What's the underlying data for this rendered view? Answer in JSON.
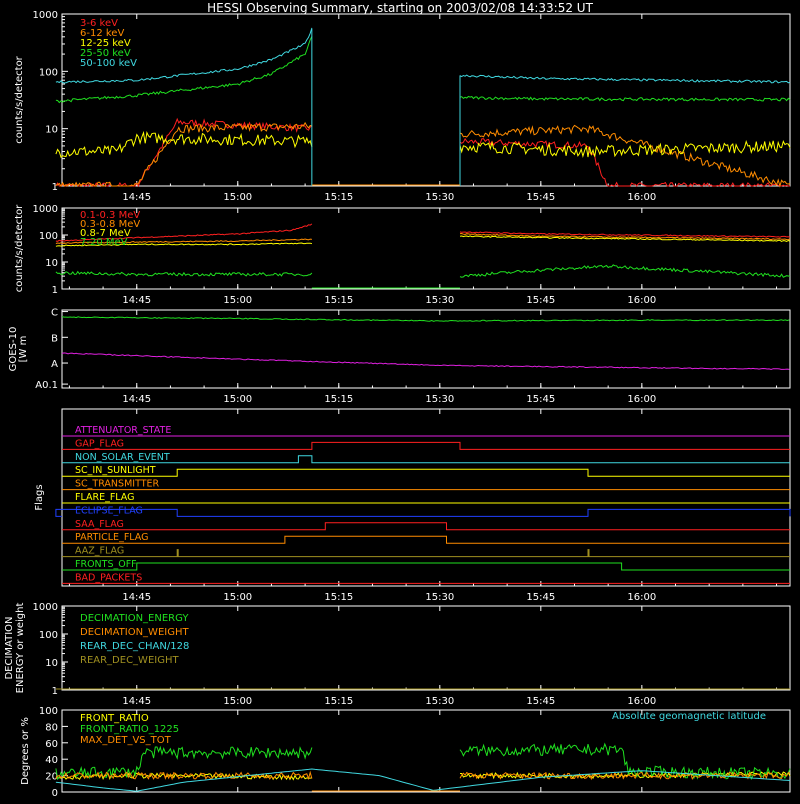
{
  "title": "HESSI Observing Summary, starting on 2003/02/08 14:33:52 UT",
  "x_ticks": [
    "14:45",
    "15:00",
    "15:15",
    "15:30",
    "15:45",
    "16:00"
  ],
  "colors": {
    "red": "#ff2020",
    "orange": "#ff8c00",
    "yellow": "#ffff00",
    "green": "#20e020",
    "cyan": "#40d8e0",
    "magenta": "#e020e0",
    "blue": "#2040ff",
    "olive": "#a09020",
    "white": "#ffffff",
    "black": "#000000"
  },
  "chart_data": [
    {
      "type": "line",
      "panel": "low-energy-rates",
      "ylabel": "counts/s/detector",
      "y_scale": "log",
      "ylim": [
        1,
        1000
      ],
      "y_ticks": [
        "1",
        "10",
        "100",
        "1000"
      ],
      "x_ticks": [
        "14:45",
        "15:00",
        "15:15",
        "15:30",
        "15:45",
        "16:00"
      ],
      "legend_position": "top-left",
      "data_gaps": [
        [
          "15:11",
          "15:33"
        ]
      ],
      "series": [
        {
          "name": "3-6 keV",
          "color": "red",
          "x": [
            "14:33",
            "14:42",
            "14:45",
            "14:51",
            "15:11",
            "15:33",
            "15:52",
            "15:55",
            "16:22"
          ],
          "values": [
            1,
            1,
            1,
            13,
            10,
            6,
            5,
            1,
            1
          ]
        },
        {
          "name": "6-12 keV",
          "color": "orange",
          "x": [
            "14:33",
            "14:42",
            "14:45",
            "14:51",
            "15:11",
            "15:33",
            "15:52",
            "16:22"
          ],
          "values": [
            1,
            1,
            1,
            10,
            11,
            8,
            10,
            1
          ]
        },
        {
          "name": "12-25 keV",
          "color": "yellow",
          "x": [
            "14:33",
            "14:42",
            "14:45",
            "15:11",
            "15:33",
            "15:52",
            "16:22"
          ],
          "values": [
            4,
            4,
            7,
            6,
            5,
            4,
            5
          ]
        },
        {
          "name": "25-50 keV",
          "color": "green",
          "x": [
            "14:33",
            "14:45",
            "15:00",
            "15:05",
            "15:10",
            "15:11",
            "15:33",
            "15:45",
            "16:22"
          ],
          "values": [
            30,
            38,
            60,
            90,
            200,
            400,
            35,
            33,
            32
          ]
        },
        {
          "name": "50-100 keV",
          "color": "cyan",
          "x": [
            "14:33",
            "14:45",
            "15:00",
            "15:05",
            "15:10",
            "15:11",
            "15:33",
            "15:45",
            "16:22"
          ],
          "values": [
            65,
            70,
            110,
            160,
            300,
            550,
            85,
            75,
            65
          ]
        }
      ]
    },
    {
      "type": "line",
      "panel": "high-energy-rates",
      "ylabel": "counts/s/detector",
      "y_scale": "log",
      "ylim": [
        1,
        1000
      ],
      "y_ticks": [
        "1",
        "10",
        "100",
        "1000"
      ],
      "x_ticks": [
        "14:45",
        "15:00",
        "15:15",
        "15:30",
        "15:45",
        "16:00"
      ],
      "legend_position": "top-left",
      "data_gaps": [
        [
          "15:11",
          "15:33"
        ]
      ],
      "series": [
        {
          "name": "0.1-0.3 MeV",
          "color": "red",
          "x": [
            "14:33",
            "14:45",
            "15:00",
            "15:08",
            "15:11",
            "15:33",
            "15:45",
            "16:22"
          ],
          "values": [
            60,
            80,
            110,
            150,
            250,
            130,
            110,
            85
          ]
        },
        {
          "name": "0.3-0.8 MeV",
          "color": "orange",
          "x": [
            "14:33",
            "14:45",
            "15:00",
            "15:11",
            "15:33",
            "15:45",
            "16:22"
          ],
          "values": [
            50,
            55,
            60,
            70,
            110,
            90,
            70
          ]
        },
        {
          "name": "0.8-7 MeV",
          "color": "yellow",
          "x": [
            "14:33",
            "14:45",
            "15:00",
            "15:11",
            "15:33",
            "15:45",
            "16:22"
          ],
          "values": [
            40,
            45,
            45,
            50,
            90,
            80,
            60
          ]
        },
        {
          "name": "7-20 MeV",
          "color": "green",
          "x": [
            "14:33",
            "14:45",
            "15:00",
            "15:11",
            "15:33",
            "15:45",
            "15:55",
            "16:22"
          ],
          "values": [
            4,
            3.5,
            3.5,
            3.5,
            3,
            5,
            7,
            3
          ]
        }
      ]
    },
    {
      "type": "line",
      "panel": "goes",
      "ylabel": "GOES-10",
      "ylabel_units": "[W m",
      "y_scale": "log",
      "y_ticks": [
        "A0.1",
        "A",
        "B",
        "C"
      ],
      "x_ticks": [
        "14:45",
        "15:00",
        "15:15",
        "15:30",
        "15:45",
        "16:00"
      ],
      "series": [
        {
          "color": "green",
          "x": [
            "14:33",
            "15:00",
            "15:30",
            "16:00",
            "16:22"
          ],
          "values": [
            "C",
            "C",
            "C",
            "C",
            "C"
          ],
          "level_fraction": [
            0.09,
            0.11,
            0.14,
            0.13,
            0.13
          ]
        },
        {
          "color": "magenta",
          "x": [
            "14:33",
            "15:00",
            "15:30",
            "16:00",
            "16:22"
          ],
          "values": [
            "A",
            "A",
            "A",
            "A",
            "A"
          ],
          "level_fraction": [
            0.55,
            0.63,
            0.71,
            0.74,
            0.76
          ]
        }
      ]
    },
    {
      "type": "line",
      "panel": "flags",
      "ylabel": "Flags",
      "x_ticks": [
        "14:45",
        "15:00",
        "15:15",
        "15:30",
        "15:45",
        "16:00"
      ],
      "flags": [
        {
          "name": "ATTENUATOR_STATE",
          "color": "magenta",
          "on": []
        },
        {
          "name": "GAP_FLAG",
          "color": "red",
          "on": [
            [
              "15:11",
              "15:33"
            ]
          ]
        },
        {
          "name": "NON_SOLAR_EVENT",
          "color": "cyan",
          "on": [
            [
              "15:09",
              "15:11"
            ]
          ]
        },
        {
          "name": "SC_IN_SUNLIGHT",
          "color": "yellow",
          "on": [
            [
              "14:51",
              "15:52"
            ]
          ]
        },
        {
          "name": "SC_TRANSMITTER",
          "color": "orange",
          "on": []
        },
        {
          "name": "FLARE_FLAG",
          "color": "yellow",
          "on": []
        },
        {
          "name": "ECLIPSE_FLAG",
          "color": "blue",
          "on": [
            [
              "14:33",
              "14:51"
            ],
            [
              "15:52",
              "16:22"
            ]
          ]
        },
        {
          "name": "SAA_FLAG",
          "color": "red",
          "on": [
            [
              "15:13",
              "15:31"
            ]
          ]
        },
        {
          "name": "PARTICLE_FLAG",
          "color": "orange",
          "on": [
            [
              "15:07",
              "15:31"
            ]
          ]
        },
        {
          "name": "AAZ_FLAG",
          "color": "olive",
          "on": [
            [
              "14:51",
              "14:51"
            ],
            [
              "15:52",
              "15:52"
            ]
          ]
        },
        {
          "name": "FRONTS_OFF",
          "color": "green",
          "on": [
            [
              "14:45",
              "15:57"
            ]
          ]
        },
        {
          "name": "BAD_PACKETS",
          "color": "red",
          "on": []
        }
      ]
    },
    {
      "type": "line",
      "panel": "decimation",
      "ylabel": "DECIMATION",
      "ylabel2": "ENERGY or weight",
      "y_scale": "log",
      "ylim": [
        1,
        1000
      ],
      "y_ticks": [
        "1",
        "10",
        "100",
        "1000"
      ],
      "x_ticks": [
        "14:45",
        "15:00",
        "15:15",
        "15:30",
        "15:45",
        "16:00"
      ],
      "series": [
        {
          "name": "DECIMATION_ENERGY",
          "color": "green"
        },
        {
          "name": "DECIMATION_WEIGHT",
          "color": "orange"
        },
        {
          "name": "REAR_DEC_CHAN/128",
          "color": "cyan"
        },
        {
          "name": "REAR_DEC_WEIGHT",
          "color": "olive",
          "x": [
            "14:33",
            "16:22"
          ],
          "values": [
            1,
            1
          ]
        }
      ]
    },
    {
      "type": "line",
      "panel": "ratios",
      "ylabel": "Degrees or %",
      "ylim": [
        0,
        100
      ],
      "y_ticks": [
        "0",
        "20",
        "40",
        "60",
        "80",
        "100"
      ],
      "annotation": "Absolute geomagnetic latitude",
      "data_gaps": [
        [
          "15:11",
          "15:33"
        ]
      ],
      "series": [
        {
          "name": "FRONT_RATIO",
          "color": "yellow",
          "x": [
            "14:33",
            "14:45",
            "15:11",
            "15:33",
            "15:57",
            "16:22"
          ],
          "values": [
            18,
            20,
            18,
            20,
            20,
            22
          ]
        },
        {
          "name": "FRONT_RATIO_1225",
          "color": "green",
          "x": [
            "14:33",
            "14:45",
            "14:46",
            "15:11",
            "15:33",
            "15:57",
            "15:58",
            "16:22"
          ],
          "values": [
            22,
            25,
            48,
            48,
            50,
            52,
            25,
            22
          ]
        },
        {
          "name": "MAX_DET_VS_TOT",
          "color": "orange",
          "x": [
            "14:33",
            "15:11",
            "15:33",
            "16:22"
          ],
          "values": [
            20,
            20,
            20,
            20
          ]
        },
        {
          "name": "Absolute geomagnetic latitude",
          "color": "cyan",
          "x": [
            "14:33",
            "14:40",
            "14:45",
            "14:52",
            "15:11",
            "15:21",
            "15:29",
            "15:45",
            "16:00",
            "16:22"
          ],
          "values": [
            12,
            5,
            1,
            12,
            28,
            20,
            2,
            18,
            26,
            14
          ]
        }
      ]
    }
  ]
}
